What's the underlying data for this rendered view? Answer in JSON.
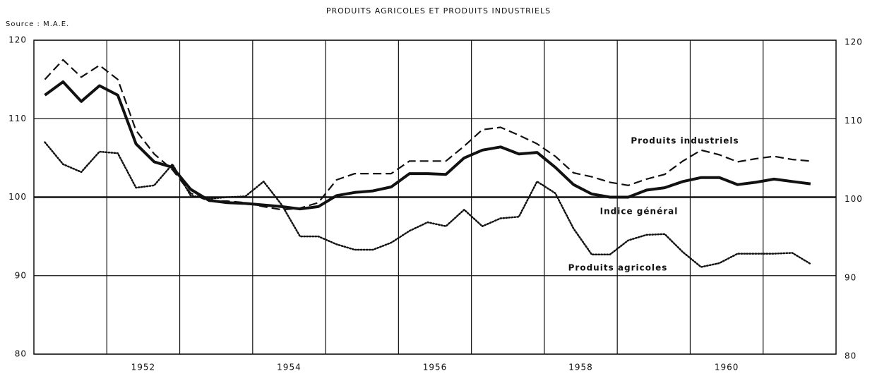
{
  "chart_data": {
    "type": "line",
    "title": "PRODUITS AGRICOLES ET PRODUITS INDUSTRIELS",
    "subtitle": "Source : M.A.E.",
    "x": [
      1951.15,
      1951.4,
      1951.65,
      1951.9,
      1952.15,
      1952.4,
      1952.65,
      1952.9,
      1953.15,
      1953.4,
      1953.65,
      1953.9,
      1954.15,
      1954.4,
      1954.65,
      1954.9,
      1955.15,
      1955.4,
      1955.65,
      1955.9,
      1956.15,
      1956.4,
      1956.65,
      1956.9,
      1957.15,
      1957.4,
      1957.65,
      1957.9,
      1958.15,
      1958.4,
      1958.65,
      1958.9,
      1959.15,
      1959.4,
      1959.65,
      1959.9,
      1960.15,
      1960.4,
      1960.65,
      1960.9,
      1961.15,
      1961.4,
      1961.65
    ],
    "series": [
      {
        "name": "Produits industriels",
        "color": "#111111",
        "dash": "dashed",
        "values": [
          115,
          117.5,
          115.3,
          116.8,
          115,
          108.5,
          105.5,
          103.5,
          100.5,
          99.5,
          99.5,
          99.3,
          98.8,
          98.4,
          98.6,
          99.3,
          102.2,
          103,
          103,
          103,
          104.6,
          104.6,
          104.6,
          106.5,
          108.6,
          108.9,
          107.9,
          106.8,
          105.2,
          103.1,
          102.6,
          101.9,
          101.5,
          102.3,
          102.9,
          104.6,
          106,
          105.4,
          104.5,
          104.9,
          105.2,
          104.8,
          104.6
        ]
      },
      {
        "name": "Indice général",
        "color": "#111111",
        "dash": "solid",
        "values": [
          113,
          114.7,
          112.2,
          114.2,
          113,
          106.8,
          104.5,
          103.8,
          101,
          99.6,
          99.3,
          99.2,
          99,
          98.8,
          98.5,
          98.8,
          100.2,
          100.6,
          100.8,
          101.3,
          103,
          103,
          102.9,
          105,
          106,
          106.4,
          105.5,
          105.7,
          103.8,
          101.6,
          100.4,
          100,
          100,
          100.9,
          101.2,
          102,
          102.5,
          102.5,
          101.6,
          101.9,
          102.3,
          102,
          101.7
        ]
      },
      {
        "name": "Produits agricoles",
        "color": "#111111",
        "dash": "dotted",
        "values": [
          107,
          104.2,
          103.2,
          105.8,
          105.6,
          101.2,
          101.5,
          104.2,
          100.2,
          99.8,
          100,
          100.1,
          102,
          99,
          95,
          95,
          94,
          93.3,
          93.3,
          94.2,
          95.7,
          96.8,
          96.3,
          98.4,
          96.3,
          97.3,
          97.5,
          102,
          100.5,
          96,
          92.7,
          92.7,
          94.5,
          95.2,
          95.3,
          93,
          91.1,
          91.6,
          92.8,
          92.8,
          92.8,
          92.9,
          91.5
        ]
      }
    ],
    "xlim": [
      1951,
      1962
    ],
    "xticks": [
      {
        "value": 1952.5,
        "label": "1952"
      },
      {
        "value": 1954.5,
        "label": "1954"
      },
      {
        "value": 1956.5,
        "label": "1956"
      },
      {
        "value": 1958.5,
        "label": "1958"
      },
      {
        "value": 1960.5,
        "label": "1960"
      }
    ],
    "xgrid": [
      1952,
      1953,
      1954,
      1955,
      1956,
      1957,
      1958,
      1959,
      1960,
      1961
    ],
    "ylim": [
      80,
      120
    ],
    "yticks": [
      80,
      90,
      100,
      110,
      120
    ],
    "hline": 100,
    "grid": true
  }
}
